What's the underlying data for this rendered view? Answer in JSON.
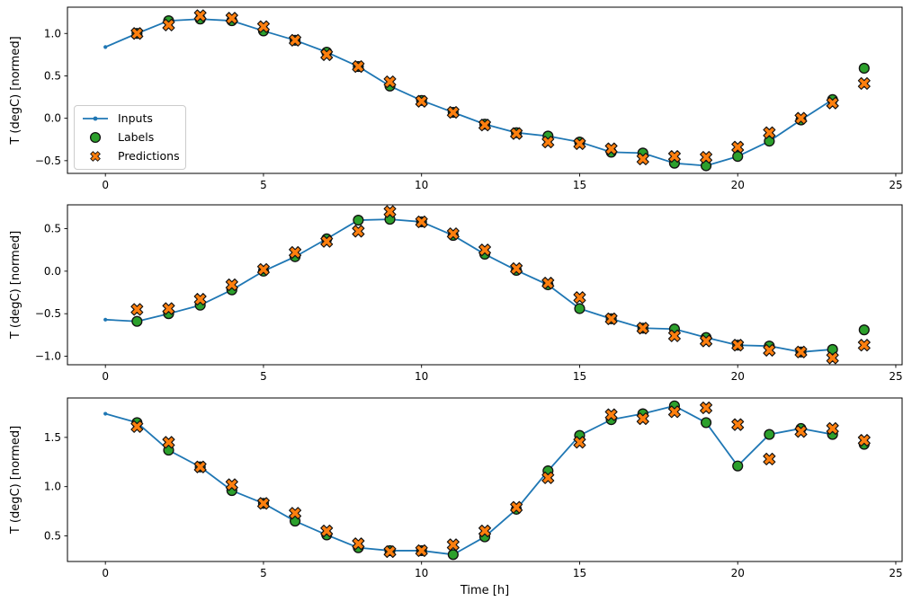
{
  "figure": {
    "xlabel": "Time [h]",
    "background": "#ffffff",
    "colors": {
      "inputs": "#1f77b4",
      "labels": "#2ca02c",
      "predictions": "#ff7f0e",
      "marker_edge": "#111111",
      "axis": "#000000",
      "legend_border": "#cccccc"
    }
  },
  "legend": {
    "visible_on_subplot": 1,
    "position": "center left",
    "entries": [
      "Inputs",
      "Labels",
      "Predictions"
    ]
  },
  "chart_data": [
    {
      "type": "line",
      "subplot": 1,
      "title": "",
      "xlabel": "",
      "ylabel": "T (degC) [normed]",
      "grid": false,
      "x_range": [
        -1.2,
        25.2
      ],
      "y_range": [
        -0.65,
        1.31
      ],
      "xticks": [
        0,
        5,
        10,
        15,
        20,
        25
      ],
      "xtick_labels": [
        "0",
        "5",
        "10",
        "15",
        "20",
        "25"
      ],
      "yticks": [
        -0.5,
        0.0,
        0.5,
        1.0
      ],
      "ytick_labels": [
        "−0.5",
        "0.0",
        "0.5",
        "1.0"
      ],
      "series": [
        {
          "name": "Inputs",
          "type": "line",
          "marker": "dot",
          "color": "#1f77b4",
          "x": [
            0,
            1,
            2,
            3,
            4,
            5,
            6,
            7,
            8,
            9,
            10,
            11,
            12,
            13,
            14,
            15,
            16,
            17,
            18,
            19,
            20,
            21,
            22,
            23
          ],
          "y": [
            0.84,
            1.0,
            1.15,
            1.17,
            1.15,
            1.03,
            0.92,
            0.78,
            0.61,
            0.38,
            0.21,
            0.07,
            -0.07,
            -0.17,
            -0.21,
            -0.28,
            -0.4,
            -0.41,
            -0.53,
            -0.56,
            -0.45,
            -0.27,
            -0.02,
            0.22
          ]
        },
        {
          "name": "Labels",
          "type": "scatter",
          "marker": "circle",
          "color": "#2ca02c",
          "x": [
            1,
            2,
            3,
            4,
            5,
            6,
            7,
            8,
            9,
            10,
            11,
            12,
            13,
            14,
            15,
            16,
            17,
            18,
            19,
            20,
            21,
            22,
            23,
            24
          ],
          "y": [
            1.0,
            1.15,
            1.17,
            1.15,
            1.03,
            0.92,
            0.78,
            0.61,
            0.38,
            0.21,
            0.07,
            -0.07,
            -0.17,
            -0.21,
            -0.28,
            -0.4,
            -0.41,
            -0.53,
            -0.56,
            -0.45,
            -0.27,
            -0.02,
            0.22,
            0.59
          ]
        },
        {
          "name": "Predictions",
          "type": "scatter",
          "marker": "X",
          "color": "#ff7f0e",
          "x": [
            1,
            2,
            3,
            4,
            5,
            6,
            7,
            8,
            9,
            10,
            11,
            12,
            13,
            14,
            15,
            16,
            17,
            18,
            19,
            20,
            21,
            22,
            23,
            24
          ],
          "y": [
            1.0,
            1.1,
            1.21,
            1.18,
            1.08,
            0.92,
            0.75,
            0.61,
            0.43,
            0.2,
            0.07,
            -0.08,
            -0.18,
            -0.28,
            -0.3,
            -0.36,
            -0.48,
            -0.45,
            -0.46,
            -0.34,
            -0.17,
            0.0,
            0.18,
            0.41
          ]
        }
      ]
    },
    {
      "type": "line",
      "subplot": 2,
      "title": "",
      "xlabel": "",
      "ylabel": "T (degC) [normed]",
      "grid": false,
      "x_range": [
        -1.2,
        25.2
      ],
      "y_range": [
        -1.1,
        0.78
      ],
      "xticks": [
        0,
        5,
        10,
        15,
        20,
        25
      ],
      "xtick_labels": [
        "0",
        "5",
        "10",
        "15",
        "20",
        "25"
      ],
      "yticks": [
        -1.0,
        -0.5,
        0.0,
        0.5
      ],
      "ytick_labels": [
        "−1.0",
        "−0.5",
        "0.0",
        "0.5"
      ],
      "series": [
        {
          "name": "Inputs",
          "type": "line",
          "marker": "dot",
          "color": "#1f77b4",
          "x": [
            0,
            1,
            2,
            3,
            4,
            5,
            6,
            7,
            8,
            9,
            10,
            11,
            12,
            13,
            14,
            15,
            16,
            17,
            18,
            19,
            20,
            21,
            22,
            23
          ],
          "y": [
            -0.57,
            -0.59,
            -0.5,
            -0.4,
            -0.22,
            0.0,
            0.17,
            0.38,
            0.6,
            0.61,
            0.58,
            0.42,
            0.2,
            0.01,
            -0.16,
            -0.44,
            -0.56,
            -0.67,
            -0.68,
            -0.78,
            -0.87,
            -0.88,
            -0.95,
            -0.92
          ]
        },
        {
          "name": "Labels",
          "type": "scatter",
          "marker": "circle",
          "color": "#2ca02c",
          "x": [
            1,
            2,
            3,
            4,
            5,
            6,
            7,
            8,
            9,
            10,
            11,
            12,
            13,
            14,
            15,
            16,
            17,
            18,
            19,
            20,
            21,
            22,
            23,
            24
          ],
          "y": [
            -0.59,
            -0.5,
            -0.4,
            -0.22,
            0.0,
            0.17,
            0.38,
            0.6,
            0.61,
            0.58,
            0.42,
            0.2,
            0.01,
            -0.16,
            -0.44,
            -0.56,
            -0.67,
            -0.68,
            -0.78,
            -0.87,
            -0.88,
            -0.95,
            -0.92,
            -0.69
          ]
        },
        {
          "name": "Predictions",
          "type": "scatter",
          "marker": "X",
          "color": "#ff7f0e",
          "x": [
            1,
            2,
            3,
            4,
            5,
            6,
            7,
            8,
            9,
            10,
            11,
            12,
            13,
            14,
            15,
            16,
            17,
            18,
            19,
            20,
            21,
            22,
            23,
            24
          ],
          "y": [
            -0.45,
            -0.44,
            -0.33,
            -0.16,
            0.02,
            0.22,
            0.35,
            0.47,
            0.7,
            0.58,
            0.44,
            0.25,
            0.03,
            -0.14,
            -0.31,
            -0.56,
            -0.67,
            -0.76,
            -0.82,
            -0.87,
            -0.93,
            -0.95,
            -1.02,
            -0.87
          ]
        }
      ]
    },
    {
      "type": "line",
      "subplot": 3,
      "title": "",
      "xlabel": "Time [h]",
      "ylabel": "T (degC) [normed]",
      "grid": false,
      "x_range": [
        -1.2,
        25.2
      ],
      "y_range": [
        0.24,
        1.9
      ],
      "xticks": [
        0,
        5,
        10,
        15,
        20,
        25
      ],
      "xtick_labels": [
        "0",
        "5",
        "10",
        "15",
        "20",
        "25"
      ],
      "yticks": [
        0.5,
        1.0,
        1.5
      ],
      "ytick_labels": [
        "0.5",
        "1.0",
        "1.5"
      ],
      "series": [
        {
          "name": "Inputs",
          "type": "line",
          "marker": "dot",
          "color": "#1f77b4",
          "x": [
            0,
            1,
            2,
            3,
            4,
            5,
            6,
            7,
            8,
            9,
            10,
            11,
            12,
            13,
            14,
            15,
            16,
            17,
            18,
            19,
            20,
            21,
            22,
            23
          ],
          "y": [
            1.74,
            1.65,
            1.37,
            1.2,
            0.96,
            0.83,
            0.65,
            0.51,
            0.38,
            0.35,
            0.35,
            0.31,
            0.49,
            0.77,
            1.16,
            1.52,
            1.68,
            1.74,
            1.82,
            1.65,
            1.21,
            1.53,
            1.59,
            1.53
          ]
        },
        {
          "name": "Labels",
          "type": "scatter",
          "marker": "circle",
          "color": "#2ca02c",
          "x": [
            1,
            2,
            3,
            4,
            5,
            6,
            7,
            8,
            9,
            10,
            11,
            12,
            13,
            14,
            15,
            16,
            17,
            18,
            19,
            20,
            21,
            22,
            23,
            24
          ],
          "y": [
            1.65,
            1.37,
            1.2,
            0.96,
            0.83,
            0.65,
            0.51,
            0.38,
            0.35,
            0.35,
            0.31,
            0.49,
            0.77,
            1.16,
            1.52,
            1.68,
            1.74,
            1.82,
            1.65,
            1.21,
            1.53,
            1.59,
            1.53,
            1.43
          ]
        },
        {
          "name": "Predictions",
          "type": "scatter",
          "marker": "X",
          "color": "#ff7f0e",
          "x": [
            1,
            2,
            3,
            4,
            5,
            6,
            7,
            8,
            9,
            10,
            11,
            12,
            13,
            14,
            15,
            16,
            17,
            18,
            19,
            20,
            21,
            22,
            23,
            24
          ],
          "y": [
            1.61,
            1.45,
            1.2,
            1.02,
            0.83,
            0.73,
            0.55,
            0.42,
            0.34,
            0.35,
            0.41,
            0.55,
            0.79,
            1.09,
            1.45,
            1.73,
            1.69,
            1.76,
            1.8,
            1.63,
            1.28,
            1.56,
            1.59,
            1.47
          ]
        }
      ]
    }
  ]
}
